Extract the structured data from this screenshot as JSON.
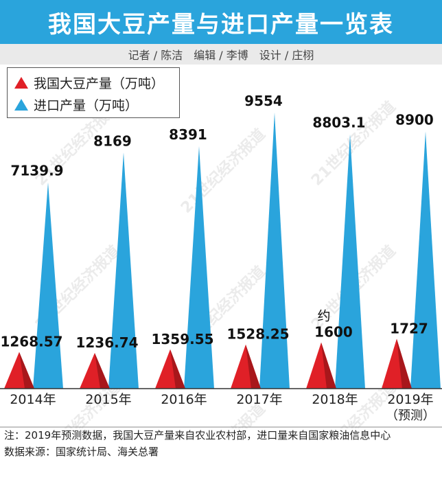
{
  "header": {
    "title": "我国大豆产量与进口产量一览表",
    "credits": [
      "记者 / 陈洁",
      "编辑 / 李博",
      "设计 / 庄栩"
    ]
  },
  "legend": {
    "domestic": "我国大豆产量（万吨）",
    "imports": "进口产量（万吨）"
  },
  "watermark": "21世纪经济报道",
  "footer": {
    "note_prefix": "注：",
    "note": "2019年预测数据，我国大豆产量来自农业农村部，进口量来自国家粮油信息中心",
    "source": "数据来源：国家统计局、海关总署"
  },
  "chart_data": {
    "type": "bar",
    "categories": [
      "2014年",
      "2015年",
      "2016年",
      "2017年",
      "2018年",
      "2019年"
    ],
    "category_notes": [
      "",
      "",
      "",
      "",
      "",
      "（预测）"
    ],
    "series": [
      {
        "name": "我国大豆产量（万吨）",
        "color": "#e02027",
        "values": [
          1268.57,
          1236.74,
          1359.55,
          1528.25,
          1600,
          1727
        ],
        "labels": [
          "1268.57",
          "1236.74",
          "1359.55",
          "1528.25",
          "1600",
          "1727"
        ],
        "label_prefixes": [
          "",
          "",
          "",
          "",
          "约",
          ""
        ]
      },
      {
        "name": "进口产量（万吨）",
        "color": "#2aa4dc",
        "values": [
          7139.9,
          8169,
          8391,
          9554,
          8803.1,
          8900
        ],
        "labels": [
          "7139.9",
          "8169",
          "8391",
          "9554",
          "8803.1",
          "8900"
        ]
      }
    ],
    "ylim": [
      0,
      9554
    ],
    "grid": false,
    "legend_position": "top-left",
    "mark_shape": "triangle"
  }
}
